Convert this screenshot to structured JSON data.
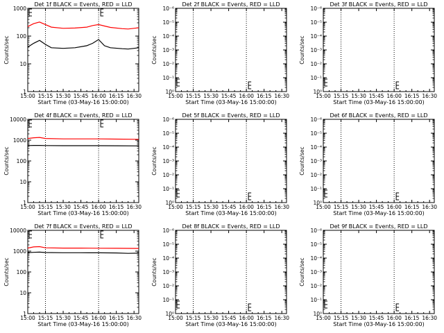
{
  "chart_data": [
    {
      "type": "line",
      "title": "Det 1f BLACK = Events, RED = LLD",
      "xlabel": "Start Time (03-May-16 15:00:00)",
      "ylabel": "Counts/sec",
      "x_ticks": [
        "15:00",
        "15:15",
        "15:30",
        "15:45",
        "16:00",
        "16:15",
        "16:30"
      ],
      "xlim_minutes": [
        0,
        94
      ],
      "y_scale": "log",
      "ylim": [
        1,
        1000
      ],
      "y_ticks": [
        "1",
        "10",
        "100",
        "1000"
      ],
      "vlines_minutes": [
        15,
        60
      ],
      "series": [
        {
          "name": "RED",
          "color": "#ff0000",
          "x_minutes": [
            0,
            5,
            10,
            15,
            20,
            30,
            40,
            50,
            55,
            60,
            65,
            70,
            80,
            85,
            90,
            94
          ],
          "values": [
            220,
            280,
            320,
            260,
            210,
            190,
            195,
            210,
            240,
            260,
            230,
            205,
            185,
            180,
            190,
            200
          ]
        },
        {
          "name": "BLACK",
          "color": "#000000",
          "x_minutes": [
            0,
            5,
            10,
            15,
            20,
            30,
            40,
            50,
            55,
            60,
            65,
            70,
            80,
            85,
            90,
            94
          ],
          "values": [
            40,
            55,
            70,
            50,
            38,
            36,
            38,
            45,
            55,
            75,
            45,
            38,
            35,
            34,
            36,
            38
          ]
        }
      ]
    },
    {
      "type": "line",
      "title": "Det 2f BLACK = Events, RED = LLD",
      "xlabel": "Start Time (03-May-16 15:00:00)",
      "ylabel": "Counts/sec",
      "x_ticks": [
        "15:00",
        "15:15",
        "15:30",
        "15:45",
        "16:00",
        "16:15",
        "16:30"
      ],
      "xlim_minutes": [
        0,
        94
      ],
      "y_scale": "log",
      "ylim": [
        1,
        1000000
      ],
      "y_ticks": [
        "10⁰",
        "10⁻¹",
        "10⁻²",
        "10⁻³",
        "10⁻⁴",
        "10⁻⁵",
        "10⁻⁶"
      ],
      "vlines_minutes": [
        15,
        60
      ],
      "series": []
    },
    {
      "type": "line",
      "title": "Det 3f BLACK = Events, RED = LLD",
      "xlabel": "Start Time (03-May-16 15:00:00)",
      "ylabel": "Counts/sec",
      "x_ticks": [
        "15:00",
        "15:15",
        "15:30",
        "15:45",
        "16:00",
        "16:15",
        "16:30"
      ],
      "xlim_minutes": [
        0,
        94
      ],
      "y_scale": "log",
      "ylim": [
        1,
        1000000
      ],
      "y_ticks": [
        "10⁰",
        "10⁻¹",
        "10⁻²",
        "10⁻³",
        "10⁻⁴",
        "10⁻⁵",
        "10⁻⁶"
      ],
      "vlines_minutes": [
        15,
        60
      ],
      "series": []
    },
    {
      "type": "line",
      "title": "Det 4f BLACK = Events, RED = LLD",
      "xlabel": "Start Time (03-May-16 15:00:00)",
      "ylabel": "Counts/sec",
      "x_ticks": [
        "15:00",
        "15:15",
        "15:30",
        "15:45",
        "16:00",
        "16:15",
        "16:30"
      ],
      "xlim_minutes": [
        0,
        94
      ],
      "y_scale": "log",
      "ylim": [
        1,
        10000
      ],
      "y_ticks": [
        "1",
        "10",
        "100",
        "1000",
        "10000"
      ],
      "vlines_minutes": [
        15,
        60
      ],
      "series": [
        {
          "name": "RED",
          "color": "#ff0000",
          "x_minutes": [
            0,
            5,
            10,
            15,
            30,
            45,
            60,
            75,
            94
          ],
          "values": [
            1200,
            1300,
            1350,
            1200,
            1150,
            1150,
            1150,
            1120,
            1100
          ]
        },
        {
          "name": "BLACK",
          "color": "#000000",
          "x_minutes": [
            0,
            5,
            10,
            15,
            30,
            45,
            60,
            75,
            94
          ],
          "values": [
            550,
            560,
            560,
            550,
            540,
            540,
            540,
            535,
            530
          ]
        }
      ]
    },
    {
      "type": "line",
      "title": "Det 5f BLACK = Events, RED = LLD",
      "xlabel": "Start Time (03-May-16 15:00:00)",
      "ylabel": "Counts/sec",
      "x_ticks": [
        "15:00",
        "15:15",
        "15:30",
        "15:45",
        "16:00",
        "16:15",
        "16:30"
      ],
      "xlim_minutes": [
        0,
        94
      ],
      "y_scale": "log",
      "ylim": [
        1,
        1000000
      ],
      "y_ticks": [
        "10⁰",
        "10⁻¹",
        "10⁻²",
        "10⁻³",
        "10⁻⁴",
        "10⁻⁵",
        "10⁻⁶"
      ],
      "vlines_minutes": [
        15,
        60
      ],
      "series": []
    },
    {
      "type": "line",
      "title": "Det 6f BLACK = Events, RED = LLD",
      "xlabel": "Start Time (03-May-16 15:00:00)",
      "ylabel": "Counts/sec",
      "x_ticks": [
        "15:00",
        "15:15",
        "15:30",
        "15:45",
        "16:00",
        "16:15",
        "16:30"
      ],
      "xlim_minutes": [
        0,
        94
      ],
      "y_scale": "log",
      "ylim": [
        1,
        1000000
      ],
      "y_ticks": [
        "10⁰",
        "10⁻¹",
        "10⁻²",
        "10⁻³",
        "10⁻⁴",
        "10⁻⁵",
        "10⁻⁶"
      ],
      "vlines_minutes": [
        15,
        60
      ],
      "series": []
    },
    {
      "type": "line",
      "title": "Det 7f BLACK = Events, RED = LLD",
      "xlabel": "Start Time (03-May-16 15:00:00)",
      "ylabel": "Counts/sec",
      "x_ticks": [
        "15:00",
        "15:15",
        "15:30",
        "15:45",
        "16:00",
        "16:15",
        "16:30"
      ],
      "xlim_minutes": [
        0,
        94
      ],
      "y_scale": "log",
      "ylim": [
        1,
        10000
      ],
      "y_ticks": [
        "1",
        "10",
        "100",
        "1000",
        "10000"
      ],
      "vlines_minutes": [
        15,
        60
      ],
      "series": [
        {
          "name": "RED",
          "color": "#ff0000",
          "x_minutes": [
            0,
            5,
            10,
            15,
            30,
            45,
            60,
            75,
            94
          ],
          "values": [
            1400,
            1600,
            1650,
            1450,
            1400,
            1400,
            1380,
            1370,
            1350
          ]
        },
        {
          "name": "BLACK",
          "color": "#000000",
          "x_minutes": [
            0,
            5,
            10,
            15,
            30,
            45,
            60,
            75,
            85,
            94
          ],
          "values": [
            850,
            880,
            900,
            860,
            840,
            840,
            830,
            820,
            780,
            800
          ]
        }
      ]
    },
    {
      "type": "line",
      "title": "Det 8f BLACK = Events, RED = LLD",
      "xlabel": "Start Time (03-May-16 15:00:00)",
      "ylabel": "Counts/sec",
      "x_ticks": [
        "15:00",
        "15:15",
        "15:30",
        "15:45",
        "16:00",
        "16:15",
        "16:30"
      ],
      "xlim_minutes": [
        0,
        94
      ],
      "y_scale": "log",
      "ylim": [
        1,
        1000000
      ],
      "y_ticks": [
        "10⁰",
        "10⁻¹",
        "10⁻²",
        "10⁻³",
        "10⁻⁴",
        "10⁻⁵",
        "10⁻⁶"
      ],
      "vlines_minutes": [
        15,
        60
      ],
      "series": []
    },
    {
      "type": "line",
      "title": "Det 9f BLACK = Events, RED = LLD",
      "xlabel": "Start Time (03-May-16 15:00:00)",
      "ylabel": "Counts/sec",
      "x_ticks": [
        "15:00",
        "15:15",
        "15:30",
        "15:45",
        "16:00",
        "16:15",
        "16:30"
      ],
      "xlim_minutes": [
        0,
        94
      ],
      "y_scale": "log",
      "ylim": [
        1,
        1000000
      ],
      "y_ticks": [
        "10⁰",
        "10⁻¹",
        "10⁻²",
        "10⁻³",
        "10⁻⁴",
        "10⁻⁵",
        "10⁻⁶"
      ],
      "vlines_minutes": [
        15,
        60
      ],
      "series": []
    }
  ]
}
